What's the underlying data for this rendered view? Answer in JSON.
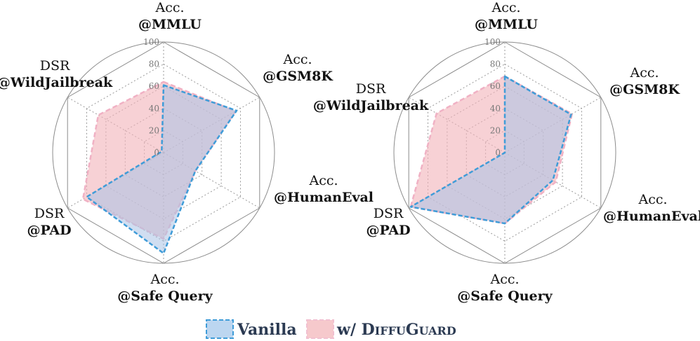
{
  "chart_data": [
    {
      "type": "radar",
      "axes": [
        {
          "line1": "Acc.",
          "line2": "@MMLU"
        },
        {
          "line1": "Acc.",
          "line2": "@GSM8K"
        },
        {
          "line1": "Acc.",
          "line2": "@HumanEval"
        },
        {
          "line1": "Acc.",
          "line2": "@Safe Query"
        },
        {
          "line1": "DSR",
          "line2": "@PAD"
        },
        {
          "line1": "DSR",
          "line2": "@WildJailbreak"
        }
      ],
      "ticks": [
        "0",
        "20",
        "40",
        "60",
        "80",
        "100"
      ],
      "range": [
        0,
        100
      ],
      "series": [
        {
          "name": "w/ DiffuGuard",
          "values": [
            64,
            75,
            33,
            78,
            84,
            68
          ]
        },
        {
          "name": "Vanilla",
          "values": [
            61,
            76,
            33,
            91,
            80,
            2
          ]
        }
      ]
    },
    {
      "type": "radar",
      "axes": [
        {
          "line1": "Acc.",
          "line2": "@MMLU"
        },
        {
          "line1": "Acc.",
          "line2": "@GSM8K"
        },
        {
          "line1": "Acc.",
          "line2": "@HumanEval"
        },
        {
          "line1": "Acc.",
          "line2": "@Safe Query"
        },
        {
          "line1": "DSR",
          "line2": "@PAD"
        },
        {
          "line1": "DSR",
          "line2": "@WildJailbreak"
        }
      ],
      "ticks": [
        "0",
        "20",
        "40",
        "60",
        "80",
        "100"
      ],
      "range": [
        0,
        100
      ],
      "series": [
        {
          "name": "w/ DiffuGuard",
          "values": [
            69,
            70,
            53,
            64,
            98,
            71
          ]
        },
        {
          "name": "Vanilla",
          "values": [
            69,
            69,
            50,
            64,
            98,
            0
          ]
        }
      ]
    }
  ],
  "legend": {
    "vanilla": "Vanilla",
    "diffuguard_prefix": "w/ ",
    "diffuguard_name": [
      "D",
      "IFFU",
      "G",
      "UARD"
    ]
  },
  "colors": {
    "vanilla_fill": "#a9c3e6",
    "vanilla_stroke": "#3f9cd8",
    "diffuguard_fill": "#f2b3b9",
    "diffuguard_stroke": "#f0b1c4",
    "grid": "#9a9a9a"
  }
}
